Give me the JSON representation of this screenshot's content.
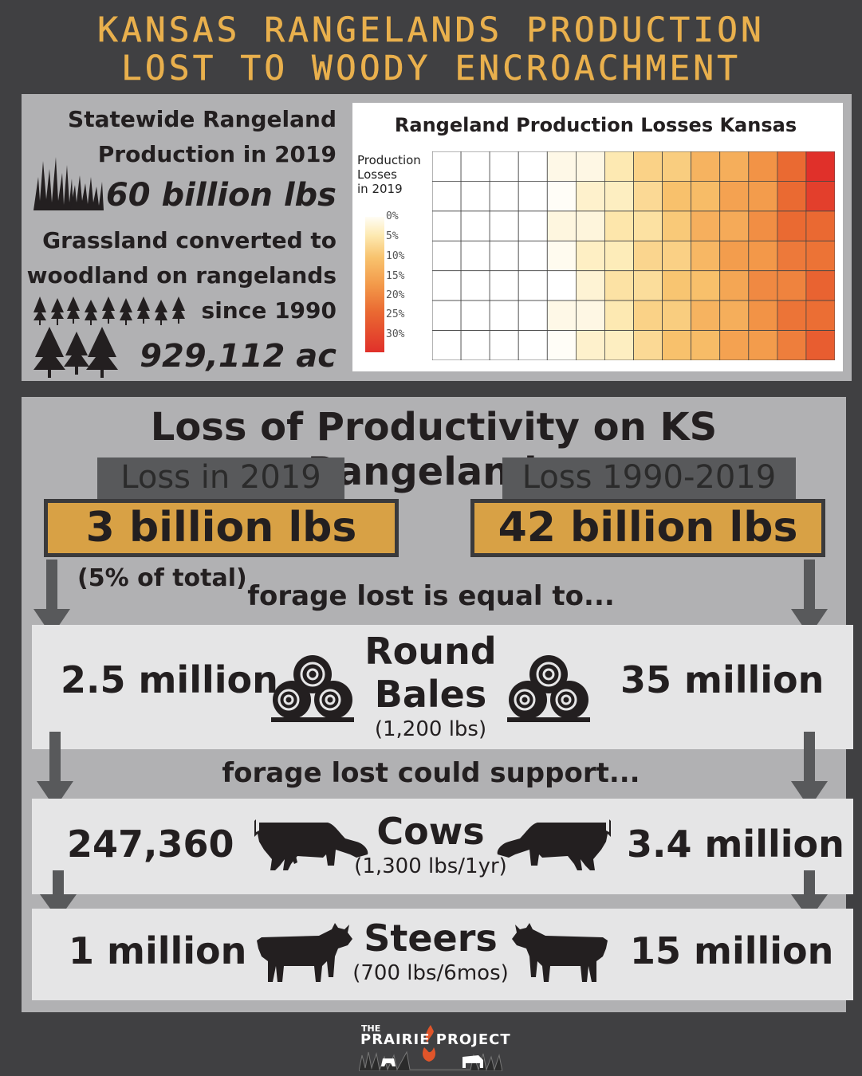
{
  "title": {
    "line1": "KANSAS RANGELANDS PRODUCTION",
    "line2": "LOST TO WOODY ENCROACHMENT"
  },
  "top": {
    "production_label_1": "Statewide Rangeland",
    "production_label_2": "Production in 2019",
    "production_value": "60 billion lbs",
    "converted_label_1": "Grassland converted to",
    "converted_label_2": "woodland on rangelands",
    "converted_label_3": "since 1990",
    "converted_value": "929,112 ac"
  },
  "map": {
    "title": "Rangeland Production Losses Kansas",
    "legend_title_1": "Production",
    "legend_title_2": "Losses",
    "legend_title_3": "in 2019",
    "legend_ticks": [
      "0%",
      "5%",
      "10%",
      "15%",
      "20%",
      "25%",
      "30%"
    ]
  },
  "loss": {
    "section_title": "Loss of Productivity on KS Rangelands",
    "tab_left": "Loss in 2019",
    "tab_right": "Loss 1990-2019",
    "value_left": "3 billion lbs",
    "value_right": "42 billion lbs",
    "left_note": "(5% of total)",
    "equal_to": "forage lost is equal to...",
    "support": "forage lost could support..."
  },
  "bales": {
    "left": "2.5 million",
    "right": "35 million",
    "label_1": "Round",
    "label_2": "Bales",
    "sub": "(1,200 lbs)"
  },
  "cows": {
    "left": "247,360",
    "right": "3.4 million",
    "label": "Cows",
    "sub": "(1,300 lbs/1yr)"
  },
  "steers": {
    "left": "1 million",
    "right": "15 million",
    "label": "Steers",
    "sub": "(700 lbs/6mos)"
  },
  "logo": {
    "the": "THE",
    "name": "PRAIRIE PROJECT"
  },
  "colors": {
    "background": "#404042",
    "panel": "#b1b1b3",
    "light_band": "#e5e5e6",
    "gold": "#d8a145",
    "title_gold": "#e9b04d",
    "tab": "#58595b"
  }
}
